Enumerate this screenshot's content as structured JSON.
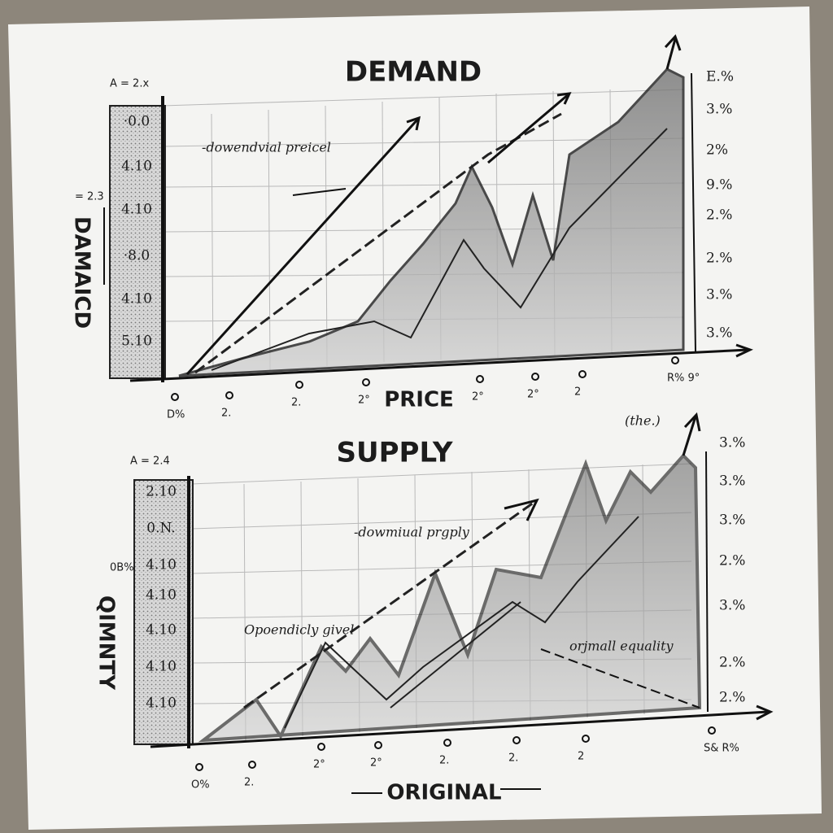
{
  "top_chart": {
    "title": "DEMAND",
    "y_label": "DAMAICD",
    "x_label": "PRICE",
    "corner_label": "A = 2.x",
    "side_label": "= 2.3",
    "annotation": "-dowendvial preicel",
    "left_scale": [
      "·0.0",
      "4.10",
      "4.10",
      "·8.0",
      "4.10",
      "5.10"
    ],
    "right_scale": [
      "E.%",
      "3.%",
      "2%",
      "9.%",
      "2.%",
      "2.%",
      "3.%",
      "3.%"
    ],
    "x_ticks": [
      "D%",
      "2.",
      "2.",
      "2°",
      "2°",
      "2°",
      "2",
      "R% 9°"
    ]
  },
  "bottom_chart": {
    "title": "SUPPLY",
    "y_label": "QIMNTY",
    "x_label": "ORIGINAL",
    "corner_label": "A = 2.4",
    "side_label": "0B%",
    "annotations": [
      "-dowmiual prgply",
      "Opoendicly givel",
      "orjmall equality",
      "(the.)"
    ],
    "left_scale": [
      "2.10",
      "0.N.",
      "4.10",
      "4.10",
      "4.10",
      "4.10",
      "4.10"
    ],
    "right_scale": [
      "3.%",
      "3.%",
      "3.%",
      "2.%",
      "3.%",
      "2.%",
      "2.%"
    ],
    "x_ticks": [
      "O%",
      "2.",
      "2°",
      "2°",
      "2.",
      "2.",
      "2",
      "S& R%"
    ]
  }
}
